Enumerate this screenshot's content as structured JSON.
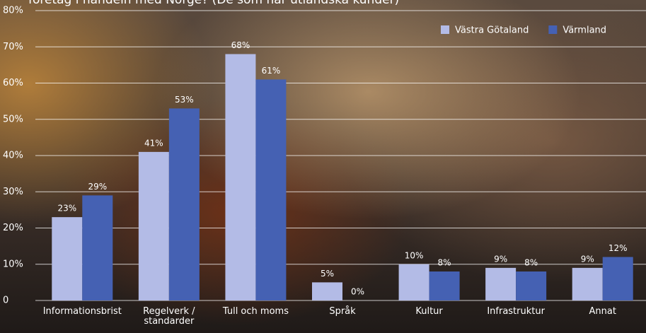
{
  "chart_data": {
    "type": "bar",
    "title": "företag i handeln med Norge? (De som har utländska kunder)",
    "categories": [
      "Informationsbrist",
      "Regelverk / standarder",
      "Tull och moms",
      "Språk",
      "Kultur",
      "Infrastruktur",
      "Annat"
    ],
    "series": [
      {
        "name": "Västra Götaland",
        "color": "#b3bbe6",
        "values": [
          23,
          41,
          68,
          5,
          10,
          9,
          9
        ],
        "value_labels": [
          "23%",
          "41%",
          "68%",
          "5%",
          "10%",
          "9%",
          "9%"
        ]
      },
      {
        "name": "Värmland",
        "color": "#4561b3",
        "values": [
          29,
          53,
          61,
          0,
          8,
          8,
          12
        ],
        "value_labels": [
          "29%",
          "53%",
          "61%",
          "0%",
          "8%",
          "8%",
          "12%"
        ]
      }
    ],
    "ylim": [
      0,
      80
    ],
    "yticks": [
      0,
      {
        "value": 10,
        "label": "10%"
      },
      {
        "value": 20,
        "label": "20%"
      },
      {
        "value": 30,
        "label": "30%"
      },
      {
        "value": 40,
        "label": "40%"
      },
      {
        "value": 50,
        "label": "50%"
      },
      {
        "value": 60,
        "label": "60%"
      },
      {
        "value": 70,
        "label": "70%"
      },
      {
        "value": 80,
        "label": "80%"
      }
    ],
    "grid": true,
    "legend": "top-right"
  }
}
